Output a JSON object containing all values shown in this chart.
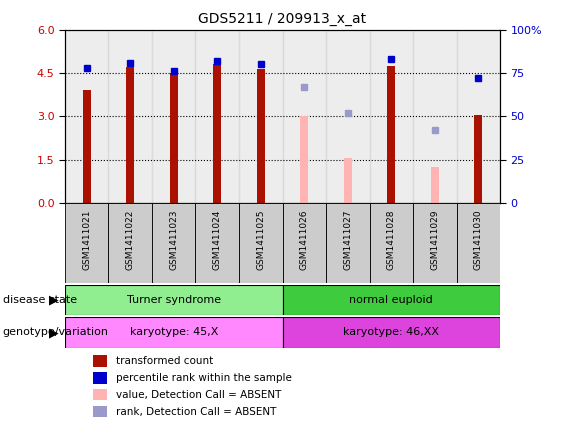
{
  "title": "GDS5211 / 209913_x_at",
  "samples": [
    "GSM1411021",
    "GSM1411022",
    "GSM1411023",
    "GSM1411024",
    "GSM1411025",
    "GSM1411026",
    "GSM1411027",
    "GSM1411028",
    "GSM1411029",
    "GSM1411030"
  ],
  "transformed_count": [
    3.9,
    4.7,
    4.5,
    4.8,
    4.65,
    null,
    null,
    4.75,
    null,
    3.05
  ],
  "percentile_rank": [
    78,
    81,
    76,
    82,
    80,
    null,
    null,
    83,
    null,
    72
  ],
  "absent_value": [
    null,
    null,
    null,
    null,
    null,
    3.0,
    1.55,
    null,
    1.25,
    null
  ],
  "absent_rank": [
    null,
    null,
    null,
    null,
    null,
    67,
    52,
    null,
    42,
    70
  ],
  "disease_state_groups": [
    {
      "label": "Turner syndrome",
      "start": 0,
      "end": 4,
      "color": "#90EE90"
    },
    {
      "label": "normal euploid",
      "start": 5,
      "end": 9,
      "color": "#3ECC3E"
    }
  ],
  "genotype_groups": [
    {
      "label": "karyotype: 45,X",
      "start": 0,
      "end": 4,
      "color": "#FF88FF"
    },
    {
      "label": "karyotype: 46,XX",
      "start": 5,
      "end": 9,
      "color": "#DD44DD"
    }
  ],
  "ylim_left": [
    0,
    6
  ],
  "ylim_right": [
    0,
    100
  ],
  "yticks_left": [
    0,
    1.5,
    3,
    4.5,
    6
  ],
  "yticks_right": [
    0,
    25,
    50,
    75,
    100
  ],
  "bar_color_present": "#AA1100",
  "bar_color_absent": "#FFB3B3",
  "dot_color_present": "#0000CC",
  "dot_color_absent": "#9999CC",
  "col_bg_color": "#CCCCCC",
  "plot_bg": "#FFFFFF",
  "legend_items": [
    {
      "label": "transformed count",
      "color": "#AA1100"
    },
    {
      "label": "percentile rank within the sample",
      "color": "#0000CC"
    },
    {
      "label": "value, Detection Call = ABSENT",
      "color": "#FFB3B3"
    },
    {
      "label": "rank, Detection Call = ABSENT",
      "color": "#9999CC"
    }
  ],
  "bar_width": 0.18
}
